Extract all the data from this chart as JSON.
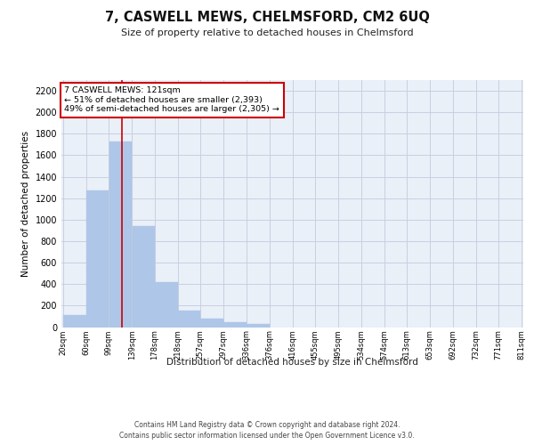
{
  "title": "7, CASWELL MEWS, CHELMSFORD, CM2 6UQ",
  "subtitle": "Size of property relative to detached houses in Chelmsford",
  "xlabel": "Distribution of detached houses by size in Chelmsford",
  "ylabel": "Number of detached properties",
  "footnote1": "Contains HM Land Registry data © Crown copyright and database right 2024.",
  "footnote2": "Contains public sector information licensed under the Open Government Licence v3.0.",
  "annotation_line1": "7 CASWELL MEWS: 121sqm",
  "annotation_line2": "← 51% of detached houses are smaller (2,393)",
  "annotation_line3": "49% of semi-detached houses are larger (2,305) →",
  "bar_edges": [
    20,
    60,
    99,
    139,
    178,
    218,
    257,
    297,
    336,
    376,
    416,
    455,
    495,
    534,
    574,
    613,
    653,
    692,
    732,
    771,
    811
  ],
  "bar_heights": [
    110,
    1270,
    1730,
    940,
    415,
    155,
    75,
    45,
    30,
    0,
    0,
    0,
    0,
    0,
    0,
    0,
    0,
    0,
    0,
    0
  ],
  "bar_color": "#aec6e8",
  "grid_color": "#c8d0e0",
  "background_color": "#eaf0f8",
  "red_line_x": 121,
  "ylim": [
    0,
    2300
  ],
  "annotation_box_color": "#cc0000",
  "annotation_box_facecolor": "white",
  "tick_labels": [
    "20sqm",
    "60sqm",
    "99sqm",
    "139sqm",
    "178sqm",
    "218sqm",
    "257sqm",
    "297sqm",
    "336sqm",
    "376sqm",
    "416sqm",
    "455sqm",
    "495sqm",
    "534sqm",
    "574sqm",
    "613sqm",
    "653sqm",
    "692sqm",
    "732sqm",
    "771sqm",
    "811sqm"
  ]
}
